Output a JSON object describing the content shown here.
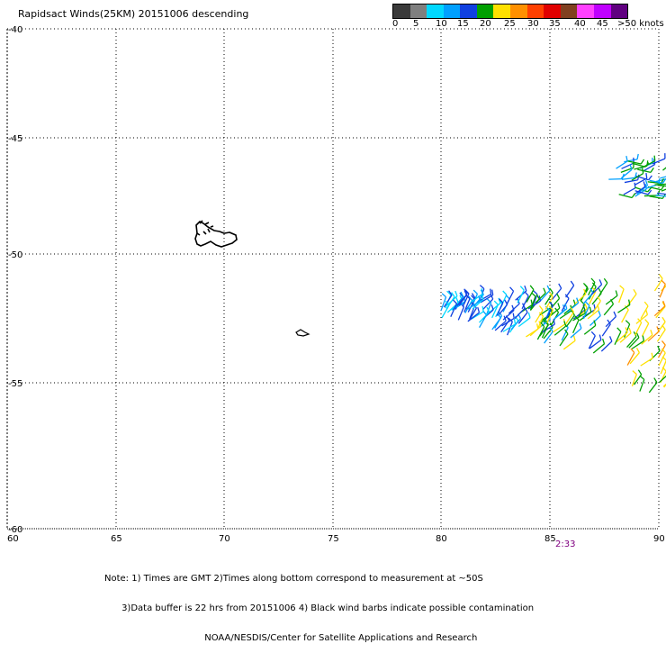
{
  "title": "Rapidsact Winds(25KM) 20151006 descending",
  "speed_scale": {
    "labels": [
      "0",
      "5",
      "10",
      "15",
      "20",
      "25",
      "30",
      "35",
      "40",
      "45",
      ">50 knots"
    ],
    "colors": [
      "#3a3a3a",
      "#7f7f7f",
      "#00d8ff",
      "#00a0ff",
      "#1040e0",
      "#00a000",
      "#ffe000",
      "#ff9000",
      "#ff4000",
      "#e00000",
      "#804020",
      "#ff40ff",
      "#c000ff",
      "#600080"
    ]
  },
  "map": {
    "lat_ticks": [
      "-40",
      "-45",
      "-50",
      "-55",
      "-60"
    ],
    "lon_ticks": [
      "60",
      "65",
      "70",
      "75",
      "80",
      "85",
      "90"
    ],
    "lat_range": [
      -60,
      -40
    ],
    "lon_range": [
      60,
      90
    ]
  },
  "time_label": "2:33",
  "notes": [
    "Note: 1) Times are GMT 2)Times along bottom correspond to measurement at ~50S",
    "      3)Data buffer is 22 hrs from 20151006 4) Black wind barbs indicate possible contamination",
    "                                   NOAA/NESDIS/Center for Satellite Applications and Research"
  ]
}
